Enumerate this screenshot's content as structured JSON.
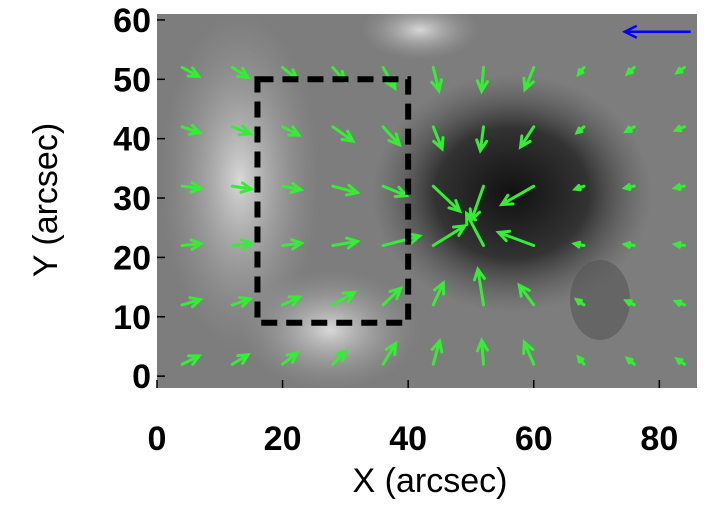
{
  "chart_data": {
    "type": "vector",
    "xlabel": "X (arcsec)",
    "ylabel": "Y (arcsec)",
    "xlim": [
      0,
      86
    ],
    "ylim": [
      -2,
      61
    ],
    "xticks": [
      0,
      20,
      40,
      60,
      80
    ],
    "yticks": [
      0,
      10,
      20,
      30,
      40,
      50,
      60
    ],
    "color": "#33ee33",
    "x": [
      4,
      12,
      20,
      28,
      36,
      44,
      52,
      60,
      68,
      76,
      84,
      4,
      12,
      20,
      28,
      36,
      44,
      52,
      60,
      68,
      76,
      84,
      4,
      12,
      20,
      28,
      36,
      44,
      52,
      60,
      68,
      76,
      84,
      4,
      12,
      20,
      28,
      36,
      44,
      52,
      60,
      68,
      76,
      84,
      4,
      12,
      20,
      28,
      36,
      44,
      52,
      60,
      68,
      76,
      84,
      4,
      12,
      20,
      28,
      36,
      44,
      52,
      60,
      68,
      76,
      84
    ],
    "y": [
      2,
      2,
      2,
      2,
      2,
      2,
      2,
      2,
      2,
      2,
      2,
      12,
      12,
      12,
      12,
      12,
      12,
      12,
      12,
      12,
      12,
      12,
      22,
      22,
      22,
      22,
      22,
      22,
      22,
      22,
      22,
      22,
      22,
      32,
      32,
      32,
      32,
      32,
      32,
      32,
      32,
      32,
      32,
      32,
      42,
      42,
      42,
      42,
      42,
      42,
      42,
      42,
      42,
      42,
      42,
      52,
      52,
      52,
      52,
      52,
      52,
      52,
      52,
      52,
      52,
      52
    ],
    "u": [
      2.7,
      2.5,
      2.3,
      2.0,
      2.0,
      1.0,
      -0.3,
      -1.5,
      -0.9,
      -1.1,
      -1.2,
      2.9,
      2.8,
      2.7,
      3.4,
      2.8,
      1.6,
      -0.9,
      -2.3,
      -1.2,
      -1.3,
      -1.4,
      3.0,
      3.0,
      3.0,
      3.9,
      5.8,
      5.0,
      -2.7,
      -5.6,
      -1.5,
      -1.5,
      -1.5,
      3.0,
      3.0,
      2.9,
      3.9,
      3.7,
      4.2,
      -1.9,
      -5.1,
      -1.4,
      -1.5,
      -1.5,
      2.8,
      2.8,
      2.6,
      3.2,
      2.6,
      1.4,
      -0.5,
      -2.1,
      -1.1,
      -1.3,
      -1.4,
      2.6,
      2.5,
      2.3,
      1.9,
      1.9,
      0.9,
      -0.3,
      -1.4,
      -0.9,
      -1.1,
      -1.2
    ],
    "v": [
      1.4,
      1.6,
      1.9,
      2.2,
      3.5,
      3.9,
      4.0,
      3.7,
      1.2,
      1.0,
      0.9,
      0.9,
      1.0,
      1.3,
      2.1,
      2.8,
      3.7,
      6.0,
      3.3,
      0.9,
      0.7,
      0.6,
      0.3,
      0.3,
      0.4,
      0.7,
      1.6,
      3.3,
      5.4,
      2.2,
      0.3,
      0.2,
      0.2,
      -0.4,
      -0.5,
      -0.6,
      -1.1,
      -1.6,
      -4.2,
      -5.7,
      -3.1,
      -0.5,
      -0.3,
      -0.3,
      -1.0,
      -1.2,
      -1.4,
      -2.4,
      -3.0,
      -3.7,
      -4.0,
      -3.4,
      -1.0,
      -0.8,
      -0.6,
      -1.5,
      -1.7,
      -2.0,
      -2.3,
      -3.5,
      -3.9,
      -4.0,
      -3.7,
      -1.2,
      -1.1,
      -0.9
    ],
    "box": {
      "x": [
        16,
        40
      ],
      "y": [
        9,
        50
      ]
    },
    "reference_arrow": {
      "x": 85,
      "y": 58,
      "u": -10.5,
      "v": 0,
      "color": "#0000ff"
    }
  }
}
